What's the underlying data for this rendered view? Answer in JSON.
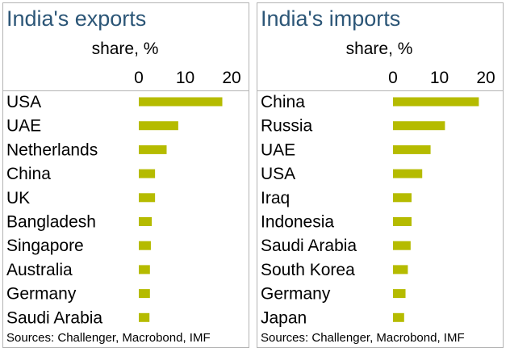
{
  "footer_source": "Sources: Challenger, Macrobond, IMF",
  "colors": {
    "bar": "#b5bb00",
    "title": "#2c5677",
    "border": "#b4b4b4"
  },
  "chart_data": [
    {
      "type": "bar",
      "orientation": "horizontal",
      "title": "India's exports",
      "xlabel": "share, %",
      "xticks": [
        0,
        10,
        20
      ],
      "xlim": [
        0,
        22
      ],
      "grid": false,
      "categories": [
        "USA",
        "UAE",
        "Netherlands",
        "China",
        "UK",
        "Bangladesh",
        "Singapore",
        "Australia",
        "Germany",
        "Saudi Arabia"
      ],
      "values": [
        18,
        8.5,
        6,
        3.5,
        3.5,
        2.8,
        2.6,
        2.4,
        2.4,
        2.3
      ]
    },
    {
      "type": "bar",
      "orientation": "horizontal",
      "title": "India's imports",
      "xlabel": "share, %",
      "xticks": [
        0,
        10,
        20
      ],
      "xlim": [
        0,
        22
      ],
      "grid": false,
      "categories": [
        "China",
        "Russia",
        "UAE",
        "USA",
        "Iraq",
        "Indonesia",
        "Saudi Arabia",
        "South Korea",
        "Germany",
        "Japan"
      ],
      "values": [
        18.5,
        11.2,
        8.1,
        6.3,
        4,
        4,
        3.8,
        3.2,
        2.7,
        2.4
      ]
    }
  ]
}
